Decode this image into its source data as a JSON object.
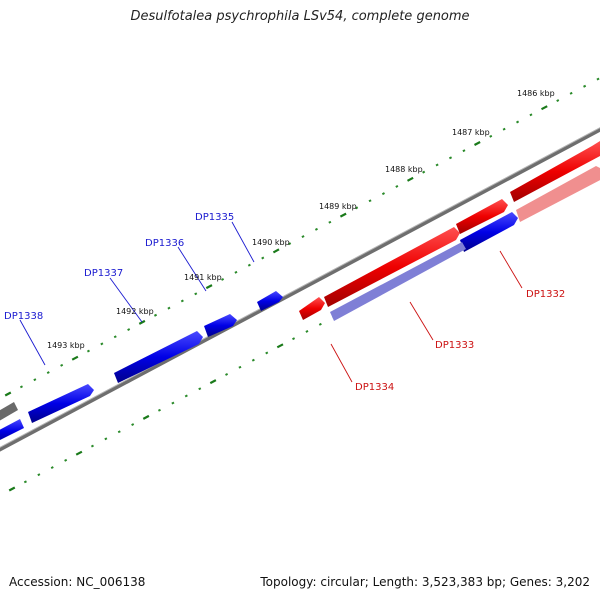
{
  "title": "Desulfotalea psychrophila LSv54, complete genome",
  "accession": "Accession: NC_006138",
  "topology": "Topology: circular; Length: 3,523,383 bp; Genes: 3,202",
  "kbp_labels": [
    "1486 kbp",
    "1487 kbp",
    "1488 kbp",
    "1489 kbp",
    "1490 kbp",
    "1491 kbp",
    "1492 kbp",
    "1493 kbp"
  ],
  "genes": {
    "forward": [
      "DP1335",
      "DP1336",
      "DP1337",
      "DP1338"
    ],
    "reverse": [
      "DP1332",
      "DP1333",
      "DP1334"
    ]
  },
  "colors": {
    "forward": "#0000e0",
    "reverse": "#ee0000",
    "backbone": "#808080",
    "ticks": "#1a7a1a"
  }
}
